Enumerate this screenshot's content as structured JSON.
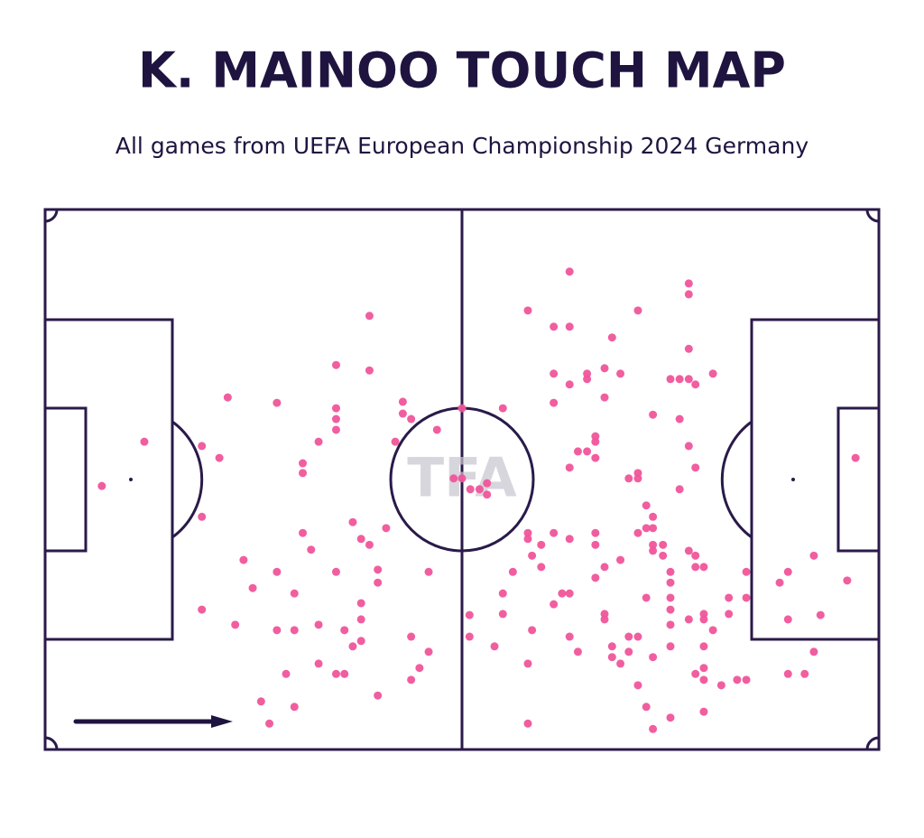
{
  "chart_data": {
    "type": "scatter",
    "title": "K. MAINOO TOUCH MAP",
    "subtitle": "All games from UEFA European Championship 2024 Germany",
    "watermark": "TFA",
    "color": "#f0559a",
    "xlim": [
      0,
      100
    ],
    "ylim": [
      0,
      100
    ],
    "x": [
      6.8,
      11.9,
      18.8,
      20.9,
      18.8,
      21.9,
      27.8,
      38.9,
      34.9,
      38.9,
      34.9,
      34.9,
      34.9,
      32.8,
      30.9,
      30.9,
      42.9,
      42.9,
      43.9,
      47.0,
      42.0,
      50.0,
      49.0,
      50.0,
      51.0,
      52.1,
      53.0,
      53.0,
      30.9,
      31.9,
      36.9,
      37.9,
      38.9,
      40.9,
      39.9,
      39.9,
      34.9,
      27.8,
      23.8,
      24.9,
      29.9,
      37.9,
      37.9,
      35.9,
      32.8,
      29.9,
      27.8,
      22.8,
      18.8,
      37.9,
      36.9,
      46.0,
      43.9,
      46.0,
      44.9,
      43.9,
      34.9,
      35.9,
      32.8,
      28.9,
      25.9,
      29.9,
      26.9,
      39.9,
      62.9,
      77.2,
      77.2,
      57.9,
      71.1,
      61.0,
      62.9,
      68.0,
      77.2,
      61.0,
      65.0,
      67.1,
      69.0,
      65.0,
      62.9,
      75.0,
      76.1,
      77.2,
      78.0,
      80.1,
      61.0,
      67.1,
      54.9,
      72.9,
      76.1,
      66.0,
      66.0,
      63.9,
      65.0,
      66.0,
      77.2,
      62.9,
      71.1,
      70.0,
      71.1,
      78.0,
      76.1,
      72.1,
      72.9,
      71.1,
      72.1,
      72.9,
      57.9,
      57.9,
      61.0,
      62.9,
      66.0,
      66.0,
      59.5,
      58.4,
      72.9,
      74.1,
      72.9,
      74.1,
      77.2,
      78.0,
      78.0,
      79.0,
      59.5,
      67.1,
      69.0,
      66.0,
      56.1,
      75.0,
      75.0,
      72.1,
      75.0,
      75.0,
      75.0,
      75.0,
      77.2,
      79.0,
      79.0,
      80.1,
      82.0,
      82.0,
      84.1,
      84.1,
      88.1,
      89.1,
      92.2,
      96.2,
      97.2,
      89.1,
      93.0,
      92.2,
      89.1,
      91.1,
      83.0,
      84.1,
      81.1,
      79.0,
      78.0,
      79.0,
      79.0,
      79.0,
      75.0,
      72.9,
      72.1,
      71.1,
      69.0,
      68.0,
      68.0,
      70.0,
      71.1,
      72.9,
      70.0,
      67.1,
      67.1,
      62.9,
      62.0,
      61.0,
      62.9,
      63.9,
      58.4,
      54.9,
      54.9,
      50.9,
      50.9,
      53.9,
      57.9,
      57.9
    ],
    "values": [
      48.8,
      57.0,
      56.2,
      54.0,
      43.1,
      65.2,
      64.2,
      80.3,
      71.2,
      70.2,
      63.2,
      61.2,
      59.2,
      57.0,
      53.0,
      51.2,
      64.4,
      62.2,
      61.2,
      59.2,
      57.0,
      63.2,
      50.2,
      50.2,
      48.2,
      48.2,
      49.3,
      47.2,
      40.1,
      37.0,
      42.1,
      39.0,
      37.9,
      41.0,
      33.3,
      30.9,
      32.9,
      32.9,
      35.1,
      29.9,
      28.9,
      27.1,
      24.1,
      22.1,
      23.1,
      22.1,
      22.1,
      23.1,
      25.9,
      20.1,
      19.1,
      32.9,
      20.9,
      18.1,
      15.1,
      12.9,
      14.0,
      14.0,
      15.9,
      14.0,
      8.9,
      7.9,
      4.8,
      10.0,
      88.5,
      86.3,
      84.3,
      81.3,
      81.3,
      78.3,
      78.3,
      76.3,
      74.2,
      69.6,
      69.6,
      70.6,
      69.6,
      68.6,
      67.6,
      68.6,
      68.6,
      68.6,
      67.6,
      69.6,
      64.2,
      65.2,
      63.2,
      62.0,
      61.2,
      58.0,
      57.0,
      55.2,
      55.2,
      54.0,
      56.2,
      52.2,
      51.2,
      50.2,
      50.2,
      52.2,
      48.2,
      45.2,
      43.1,
      40.1,
      41.0,
      41.0,
      40.1,
      39.0,
      40.1,
      39.0,
      40.1,
      37.9,
      37.9,
      35.9,
      37.9,
      37.9,
      36.8,
      35.9,
      36.8,
      35.9,
      33.8,
      33.8,
      33.8,
      33.8,
      35.1,
      31.8,
      32.9,
      32.9,
      30.9,
      28.1,
      28.1,
      25.9,
      23.1,
      19.1,
      24.1,
      25.1,
      24.1,
      22.1,
      28.1,
      25.1,
      32.9,
      28.1,
      30.9,
      32.9,
      35.9,
      31.3,
      54.0,
      24.1,
      24.9,
      18.1,
      14.0,
      14.0,
      12.9,
      12.9,
      11.9,
      15.1,
      14.0,
      19.1,
      12.9,
      7.0,
      5.9,
      3.8,
      7.9,
      11.9,
      15.9,
      17.1,
      19.1,
      20.9,
      20.9,
      17.1,
      18.1,
      25.1,
      24.1,
      28.9,
      28.9,
      26.9,
      20.9,
      18.1,
      22.1,
      28.9,
      25.1,
      24.9,
      20.9,
      19.1,
      15.9,
      4.8
    ]
  }
}
